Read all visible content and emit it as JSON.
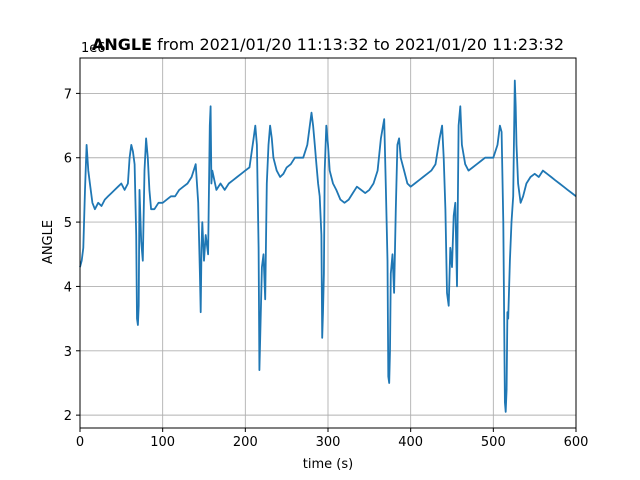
{
  "chart_data": {
    "type": "line",
    "title_bold": "ANGLE",
    "title_rest": " from 2021/01/20 11:13:32 to 2021/01/20 11:23:32",
    "xlabel": "time (s)",
    "ylabel": "ANGLE",
    "y_offset_label": "1e6",
    "xlim": [
      0,
      600
    ],
    "ylim": [
      1.8,
      7.55
    ],
    "x_ticks": [
      0,
      100,
      200,
      300,
      400,
      500,
      600
    ],
    "y_ticks": [
      2,
      3,
      4,
      5,
      6,
      7
    ],
    "grid": true,
    "series_color": "#1f77b4",
    "series": [
      {
        "values": [
          [
            0,
            4.3
          ],
          [
            2,
            4.4
          ],
          [
            4,
            4.6
          ],
          [
            6,
            5.5
          ],
          [
            8,
            6.2
          ],
          [
            10,
            5.8
          ],
          [
            12,
            5.6
          ],
          [
            15,
            5.3
          ],
          [
            18,
            5.2
          ],
          [
            22,
            5.3
          ],
          [
            26,
            5.25
          ],
          [
            30,
            5.35
          ],
          [
            34,
            5.4
          ],
          [
            38,
            5.45
          ],
          [
            42,
            5.5
          ],
          [
            46,
            5.55
          ],
          [
            50,
            5.6
          ],
          [
            54,
            5.5
          ],
          [
            58,
            5.6
          ],
          [
            60,
            6.0
          ],
          [
            62,
            6.2
          ],
          [
            64,
            6.1
          ],
          [
            66,
            5.9
          ],
          [
            68,
            4.8
          ],
          [
            69,
            3.5
          ],
          [
            70,
            3.4
          ],
          [
            71,
            3.7
          ],
          [
            72,
            5.5
          ],
          [
            74,
            4.7
          ],
          [
            76,
            4.4
          ],
          [
            78,
            5.8
          ],
          [
            80,
            6.3
          ],
          [
            82,
            6.0
          ],
          [
            84,
            5.5
          ],
          [
            86,
            5.2
          ],
          [
            90,
            5.2
          ],
          [
            95,
            5.3
          ],
          [
            100,
            5.3
          ],
          [
            105,
            5.35
          ],
          [
            110,
            5.4
          ],
          [
            115,
            5.4
          ],
          [
            120,
            5.5
          ],
          [
            125,
            5.55
          ],
          [
            130,
            5.6
          ],
          [
            135,
            5.7
          ],
          [
            140,
            5.9
          ],
          [
            143,
            5.3
          ],
          [
            145,
            4.2
          ],
          [
            146,
            3.6
          ],
          [
            147,
            4.6
          ],
          [
            148,
            5.0
          ],
          [
            150,
            4.4
          ],
          [
            152,
            4.8
          ],
          [
            155,
            4.5
          ],
          [
            157,
            6.5
          ],
          [
            158,
            6.8
          ],
          [
            159,
            5.6
          ],
          [
            160,
            5.8
          ],
          [
            165,
            5.5
          ],
          [
            170,
            5.6
          ],
          [
            175,
            5.5
          ],
          [
            180,
            5.6
          ],
          [
            185,
            5.65
          ],
          [
            190,
            5.7
          ],
          [
            195,
            5.75
          ],
          [
            200,
            5.8
          ],
          [
            205,
            5.85
          ],
          [
            210,
            6.3
          ],
          [
            212,
            6.5
          ],
          [
            214,
            6.2
          ],
          [
            216,
            4.6
          ],
          [
            217,
            2.7
          ],
          [
            218,
            3.2
          ],
          [
            220,
            4.3
          ],
          [
            222,
            4.5
          ],
          [
            224,
            3.8
          ],
          [
            226,
            5.6
          ],
          [
            228,
            6.2
          ],
          [
            230,
            6.5
          ],
          [
            232,
            6.3
          ],
          [
            234,
            6.0
          ],
          [
            238,
            5.8
          ],
          [
            242,
            5.7
          ],
          [
            246,
            5.75
          ],
          [
            250,
            5.85
          ],
          [
            255,
            5.9
          ],
          [
            260,
            6.0
          ],
          [
            265,
            6.0
          ],
          [
            270,
            6.0
          ],
          [
            275,
            6.2
          ],
          [
            280,
            6.7
          ],
          [
            282,
            6.5
          ],
          [
            284,
            6.2
          ],
          [
            286,
            5.9
          ],
          [
            288,
            5.6
          ],
          [
            290,
            5.4
          ],
          [
            292,
            4.8
          ],
          [
            293,
            3.2
          ],
          [
            294,
            3.6
          ],
          [
            295,
            4.2
          ],
          [
            296,
            5.8
          ],
          [
            298,
            6.5
          ],
          [
            300,
            6.2
          ],
          [
            302,
            5.8
          ],
          [
            306,
            5.6
          ],
          [
            310,
            5.5
          ],
          [
            315,
            5.35
          ],
          [
            320,
            5.3
          ],
          [
            325,
            5.35
          ],
          [
            330,
            5.45
          ],
          [
            335,
            5.55
          ],
          [
            340,
            5.5
          ],
          [
            345,
            5.45
          ],
          [
            350,
            5.5
          ],
          [
            355,
            5.6
          ],
          [
            360,
            5.8
          ],
          [
            364,
            6.3
          ],
          [
            368,
            6.6
          ],
          [
            370,
            5.5
          ],
          [
            372,
            4.4
          ],
          [
            373,
            2.6
          ],
          [
            374,
            2.5
          ],
          [
            375,
            3.0
          ],
          [
            376,
            4.2
          ],
          [
            378,
            4.5
          ],
          [
            380,
            3.9
          ],
          [
            382,
            5.2
          ],
          [
            384,
            6.2
          ],
          [
            386,
            6.3
          ],
          [
            388,
            6.0
          ],
          [
            392,
            5.8
          ],
          [
            396,
            5.6
          ],
          [
            400,
            5.55
          ],
          [
            405,
            5.6
          ],
          [
            410,
            5.65
          ],
          [
            415,
            5.7
          ],
          [
            420,
            5.75
          ],
          [
            425,
            5.8
          ],
          [
            430,
            5.9
          ],
          [
            435,
            6.3
          ],
          [
            438,
            6.5
          ],
          [
            440,
            6.0
          ],
          [
            442,
            5.2
          ],
          [
            444,
            3.9
          ],
          [
            446,
            3.7
          ],
          [
            448,
            4.6
          ],
          [
            450,
            4.3
          ],
          [
            452,
            5.1
          ],
          [
            454,
            5.3
          ],
          [
            456,
            4.0
          ],
          [
            458,
            6.5
          ],
          [
            460,
            6.8
          ],
          [
            462,
            6.2
          ],
          [
            466,
            5.9
          ],
          [
            470,
            5.8
          ],
          [
            475,
            5.85
          ],
          [
            480,
            5.9
          ],
          [
            485,
            5.95
          ],
          [
            490,
            6.0
          ],
          [
            495,
            6.0
          ],
          [
            500,
            6.0
          ],
          [
            505,
            6.2
          ],
          [
            508,
            6.5
          ],
          [
            510,
            6.4
          ],
          [
            512,
            5.0
          ],
          [
            514,
            2.2
          ],
          [
            515,
            2.05
          ],
          [
            516,
            2.4
          ],
          [
            517,
            3.6
          ],
          [
            518,
            3.5
          ],
          [
            520,
            4.4
          ],
          [
            522,
            5.0
          ],
          [
            524,
            5.4
          ],
          [
            526,
            7.2
          ],
          [
            527,
            6.8
          ],
          [
            528,
            6.2
          ],
          [
            530,
            5.6
          ],
          [
            533,
            5.3
          ],
          [
            536,
            5.4
          ],
          [
            540,
            5.6
          ],
          [
            545,
            5.7
          ],
          [
            550,
            5.75
          ],
          [
            555,
            5.7
          ],
          [
            560,
            5.8
          ],
          [
            565,
            5.75
          ],
          [
            570,
            5.7
          ],
          [
            575,
            5.65
          ],
          [
            580,
            5.6
          ],
          [
            585,
            5.55
          ],
          [
            590,
            5.5
          ],
          [
            595,
            5.45
          ],
          [
            600,
            5.4
          ]
        ]
      }
    ]
  }
}
